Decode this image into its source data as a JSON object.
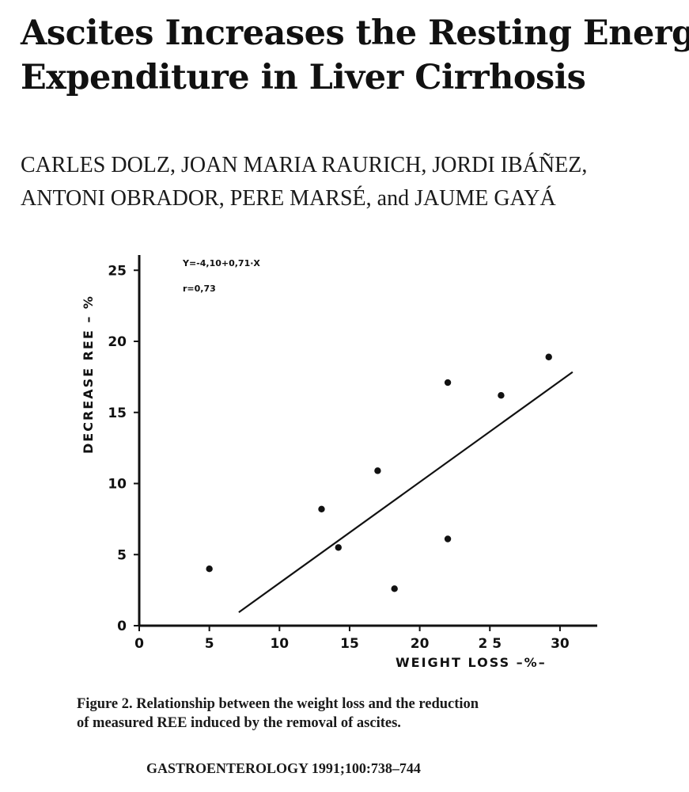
{
  "paper": {
    "title_lines": [
      "Ascites Increases the Resting Energy",
      "Expenditure in Liver Cirrhosis"
    ],
    "author_lines": [
      "CARLES DOLZ, JOAN MARIA RAURICH, JORDI IBÁÑEZ,",
      "ANTONI OBRADOR, PERE MARSÉ, and JAUME GAYÁ"
    ],
    "caption_lines": [
      "Figure 2.  Relationship between the weight loss and the reduction",
      "of measured REE induced by the removal of ascites."
    ],
    "citation": "GASTROENTEROLOGY  1991;100:738–744"
  },
  "chart_data": {
    "type": "scatter",
    "xlabel": "WEIGHT  LOSS  –%–",
    "ylabel": "DECREASE  REE  – %",
    "xlim": [
      0,
      32
    ],
    "ylim": [
      0,
      26
    ],
    "x_ticks": [
      0,
      5,
      10,
      15,
      20,
      25,
      30
    ],
    "x_tick_labels": [
      "0",
      "5",
      "10",
      "15",
      "20",
      "2 5",
      "30"
    ],
    "y_ticks": [
      0,
      5,
      10,
      15,
      20,
      25
    ],
    "y_tick_labels": [
      "0",
      "5",
      "10",
      "15",
      "20",
      "25"
    ],
    "annotations": [
      "Y=-4,10+0,71·X",
      "r=0,73"
    ],
    "grid": false,
    "points": [
      {
        "x": 5,
        "y": 4
      },
      {
        "x": 13,
        "y": 8.2
      },
      {
        "x": 14.2,
        "y": 5.5
      },
      {
        "x": 17,
        "y": 10.9
      },
      {
        "x": 18.2,
        "y": 2.6
      },
      {
        "x": 22,
        "y": 17.1
      },
      {
        "x": 22,
        "y": 6.1
      },
      {
        "x": 25.8,
        "y": 16.2
      },
      {
        "x": 29.2,
        "y": 18.9
      }
    ],
    "regression": {
      "intercept": -4.1,
      "slope": 0.71,
      "x_range": [
        7.1,
        30.9
      ]
    }
  }
}
